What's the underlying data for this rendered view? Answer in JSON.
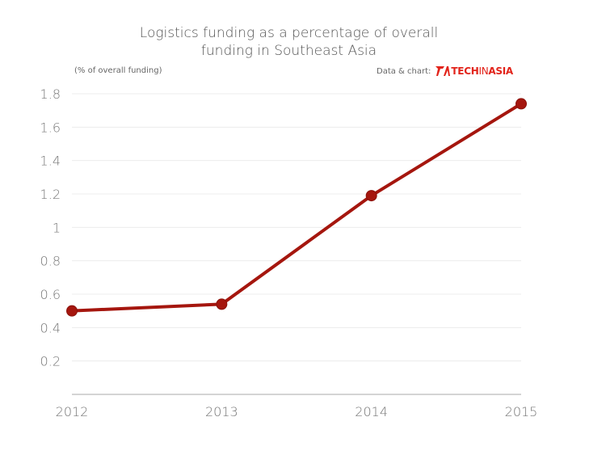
{
  "chart_data": {
    "type": "line",
    "title": "Logistics funding as a percentage of overall funding in Southeast Asia",
    "title_lines": [
      "Logistics funding as a percentage of overall",
      "funding in Southeast Asia"
    ],
    "ylabel": "(% of overall funding)",
    "xlabel": "",
    "categories": [
      "2012",
      "2013",
      "2014",
      "2015"
    ],
    "values": [
      0.5,
      0.54,
      1.19,
      1.74
    ],
    "ylim": [
      0,
      1.8
    ],
    "yticks": [
      0.2,
      0.4,
      0.6,
      0.8,
      1,
      1.2,
      1.4,
      1.6,
      1.8
    ],
    "ytick_labels": [
      "0.2",
      "0.4",
      "0.6",
      "0.8",
      "1",
      "1.2",
      "1.4",
      "1.6",
      "1.8"
    ],
    "grid": true,
    "line_color": "#a5160e",
    "marker": "circle"
  },
  "credit": {
    "label": "Data & chart:",
    "logo_text": "TECHINASIA",
    "logo_part1": "TECH",
    "logo_part2": "IN",
    "logo_part3": "ASIA",
    "brand_color": "#e2231a"
  }
}
